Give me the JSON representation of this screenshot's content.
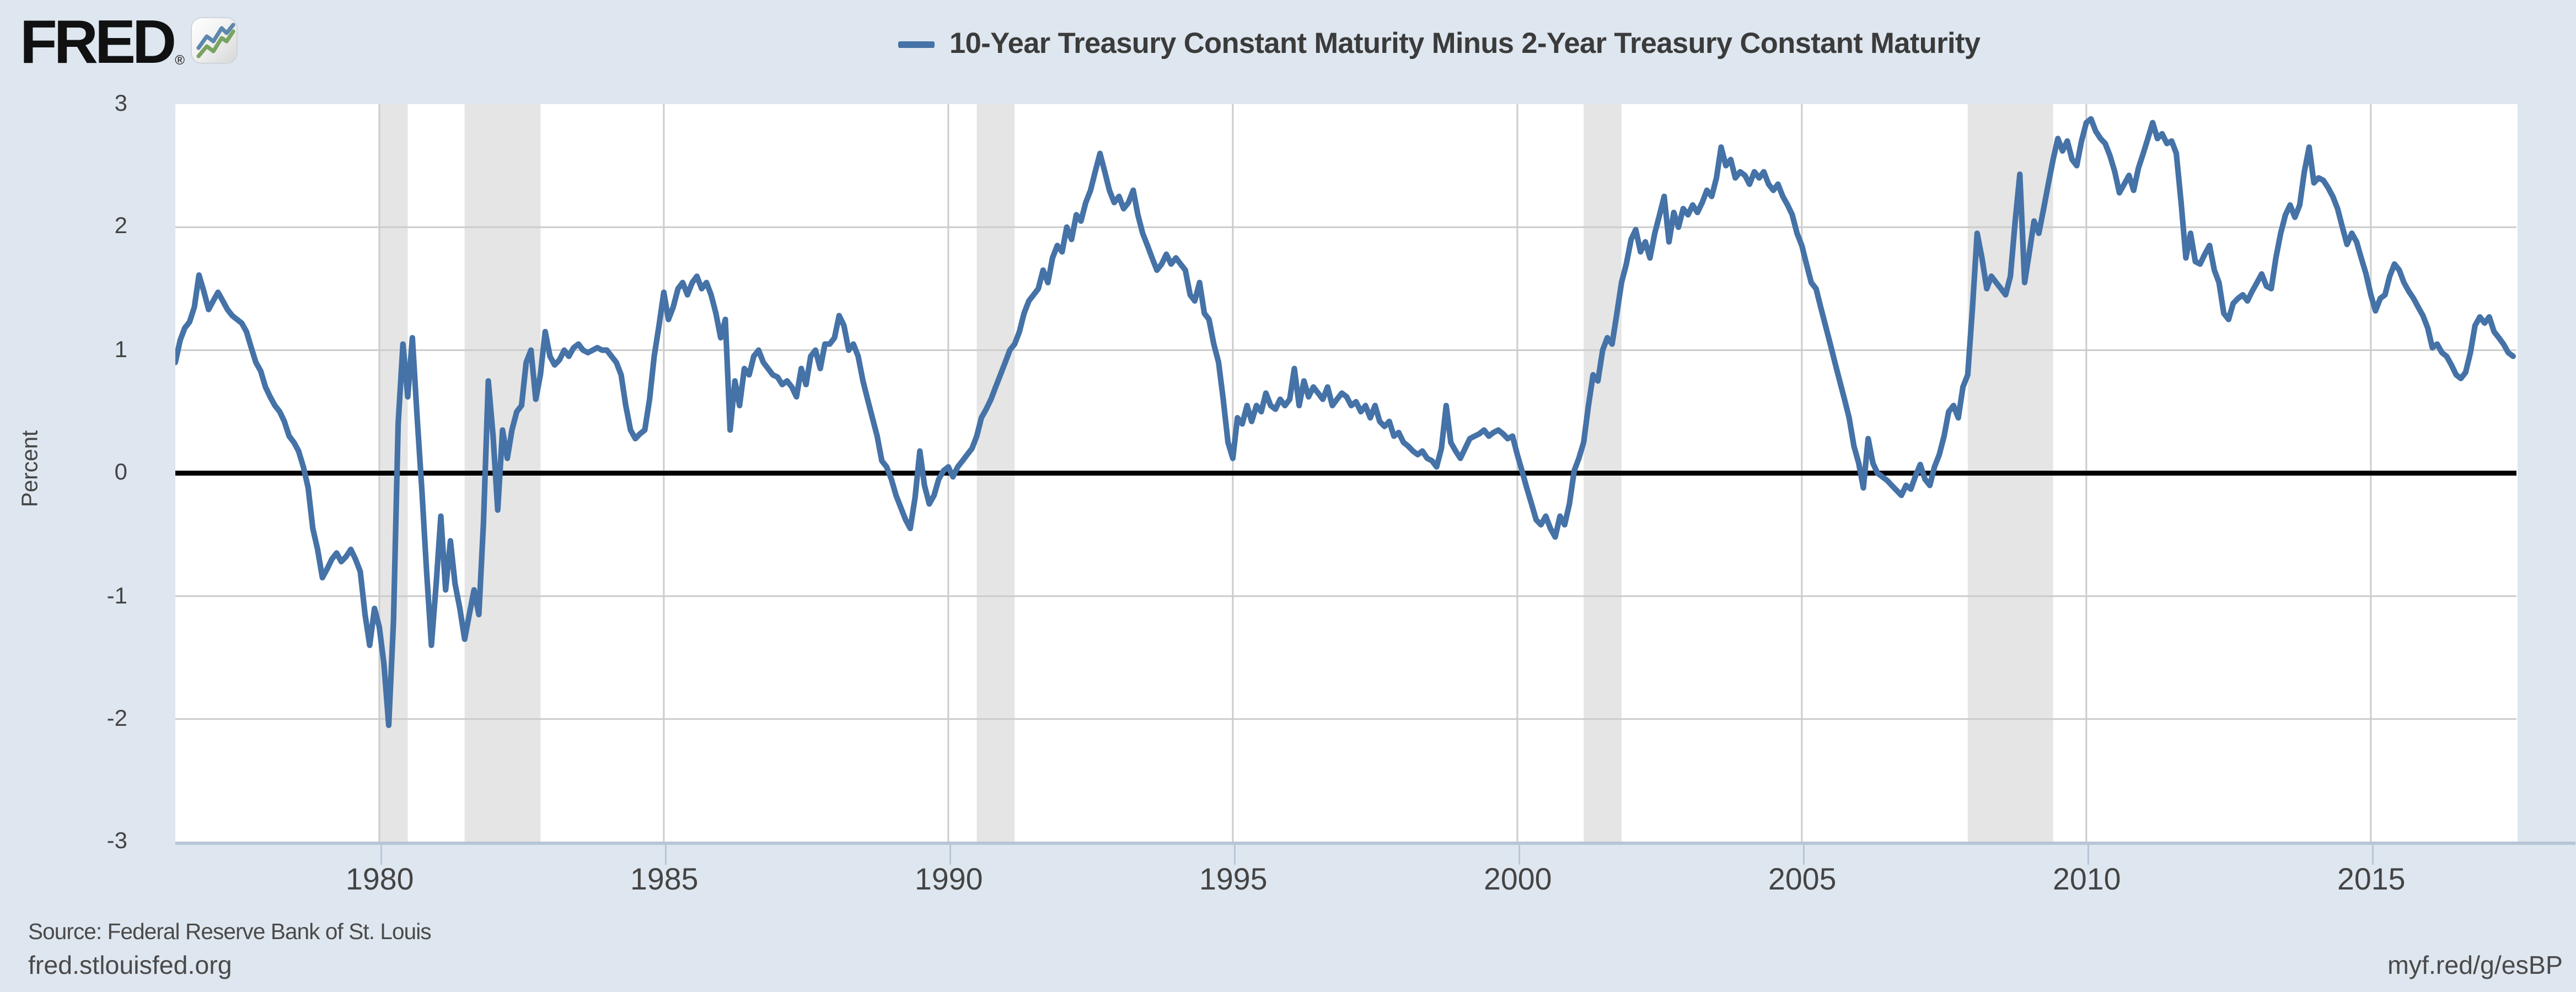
{
  "header": {
    "logo_text": "FRED",
    "logo_registered": "®",
    "legend": {
      "series_label": "10-Year Treasury Constant Maturity Minus 2-Year Treasury Constant Maturity"
    }
  },
  "chart_data": {
    "type": "line",
    "title": "",
    "xlabel": "",
    "ylabel": "Percent",
    "x_domain": [
      1976.417,
      2017.56
    ],
    "ylim": [
      -3,
      3
    ],
    "y_ticks": [
      3,
      2,
      1,
      0,
      -1,
      -2,
      -3
    ],
    "x_ticks": [
      1980,
      1985,
      1990,
      1995,
      2000,
      2005,
      2010,
      2015
    ],
    "grid": true,
    "legend_position": "top",
    "zero_line": true,
    "recession_bands": [
      [
        1980.0,
        1980.5
      ],
      [
        1981.5,
        1982.833
      ],
      [
        1990.5,
        1991.167
      ],
      [
        2001.167,
        2001.833
      ],
      [
        2007.917,
        2009.417
      ]
    ],
    "series": [
      {
        "name": "10-Year Treasury Constant Maturity Minus 2-Year Treasury Constant Maturity",
        "color": "#4572a7",
        "frequency": "monthly",
        "start": {
          "year": 1976,
          "month": 6
        },
        "values": [
          0.9,
          1.08,
          1.18,
          1.23,
          1.35,
          1.61,
          1.48,
          1.33,
          1.4,
          1.47,
          1.4,
          1.33,
          1.28,
          1.25,
          1.22,
          1.15,
          1.02,
          0.9,
          0.83,
          0.7,
          0.62,
          0.55,
          0.5,
          0.42,
          0.3,
          0.25,
          0.18,
          0.05,
          -0.12,
          -0.45,
          -0.62,
          -0.85,
          -0.78,
          -0.7,
          -0.65,
          -0.72,
          -0.68,
          -0.62,
          -0.7,
          -0.8,
          -1.15,
          -1.4,
          -1.1,
          -1.25,
          -1.55,
          -2.05,
          -1.2,
          0.4,
          1.05,
          0.62,
          1.1,
          0.45,
          -0.15,
          -0.8,
          -1.4,
          -0.9,
          -0.35,
          -0.95,
          -0.55,
          -0.9,
          -1.1,
          -1.35,
          -1.15,
          -0.95,
          -1.15,
          -0.4,
          0.75,
          0.3,
          -0.3,
          0.35,
          0.12,
          0.35,
          0.5,
          0.55,
          0.9,
          1.0,
          0.6,
          0.8,
          1.15,
          0.95,
          0.88,
          0.92,
          1.0,
          0.95,
          1.02,
          1.05,
          1.0,
          0.98,
          1.0,
          1.02,
          1.0,
          1.0,
          0.95,
          0.9,
          0.8,
          0.55,
          0.35,
          0.28,
          0.32,
          0.35,
          0.6,
          0.95,
          1.2,
          1.47,
          1.25,
          1.35,
          1.5,
          1.55,
          1.45,
          1.55,
          1.6,
          1.5,
          1.55,
          1.45,
          1.3,
          1.1,
          1.25,
          0.35,
          0.75,
          0.55,
          0.85,
          0.8,
          0.95,
          1.0,
          0.9,
          0.85,
          0.8,
          0.78,
          0.72,
          0.75,
          0.7,
          0.62,
          0.85,
          0.72,
          0.95,
          1.0,
          0.85,
          1.05,
          1.05,
          1.1,
          1.28,
          1.2,
          1.0,
          1.05,
          0.95,
          0.75,
          0.6,
          0.45,
          0.3,
          0.1,
          0.05,
          -0.05,
          -0.18,
          -0.28,
          -0.38,
          -0.45,
          -0.2,
          0.18,
          -0.1,
          -0.25,
          -0.18,
          -0.05,
          0.02,
          0.05,
          -0.03,
          0.05,
          0.1,
          0.15,
          0.2,
          0.3,
          0.45,
          0.52,
          0.6,
          0.7,
          0.8,
          0.9,
          1.0,
          1.05,
          1.15,
          1.3,
          1.4,
          1.45,
          1.5,
          1.65,
          1.55,
          1.75,
          1.85,
          1.8,
          2.0,
          1.9,
          2.1,
          2.05,
          2.2,
          2.3,
          2.45,
          2.6,
          2.45,
          2.3,
          2.2,
          2.25,
          2.15,
          2.2,
          2.3,
          2.1,
          1.95,
          1.85,
          1.75,
          1.65,
          1.7,
          1.78,
          1.7,
          1.75,
          1.7,
          1.65,
          1.45,
          1.4,
          1.55,
          1.3,
          1.25,
          1.05,
          0.9,
          0.6,
          0.25,
          0.12,
          0.45,
          0.4,
          0.55,
          0.42,
          0.55,
          0.5,
          0.65,
          0.55,
          0.52,
          0.6,
          0.55,
          0.6,
          0.85,
          0.55,
          0.75,
          0.62,
          0.7,
          0.65,
          0.6,
          0.7,
          0.55,
          0.6,
          0.65,
          0.62,
          0.55,
          0.58,
          0.5,
          0.55,
          0.45,
          0.55,
          0.42,
          0.38,
          0.42,
          0.3,
          0.33,
          0.25,
          0.22,
          0.18,
          0.15,
          0.18,
          0.12,
          0.1,
          0.05,
          0.2,
          0.55,
          0.25,
          0.18,
          0.12,
          0.2,
          0.28,
          0.3,
          0.32,
          0.35,
          0.3,
          0.33,
          0.35,
          0.32,
          0.28,
          0.3,
          0.15,
          0.02,
          -0.12,
          -0.25,
          -0.38,
          -0.42,
          -0.35,
          -0.45,
          -0.52,
          -0.35,
          -0.42,
          -0.25,
          0.02,
          0.12,
          0.25,
          0.55,
          0.8,
          0.75,
          1.0,
          1.1,
          1.05,
          1.3,
          1.55,
          1.7,
          1.9,
          1.98,
          1.8,
          1.88,
          1.75,
          1.95,
          2.1,
          2.25,
          1.88,
          2.12,
          2.0,
          2.15,
          2.1,
          2.18,
          2.12,
          2.2,
          2.3,
          2.25,
          2.4,
          2.65,
          2.5,
          2.55,
          2.4,
          2.45,
          2.42,
          2.35,
          2.45,
          2.4,
          2.45,
          2.35,
          2.3,
          2.35,
          2.25,
          2.18,
          2.1,
          1.95,
          1.85,
          1.7,
          1.55,
          1.5,
          1.35,
          1.2,
          1.05,
          0.9,
          0.75,
          0.6,
          0.45,
          0.22,
          0.08,
          -0.12,
          0.28,
          0.08,
          0.0,
          -0.03,
          -0.06,
          -0.1,
          -0.14,
          -0.18,
          -0.1,
          -0.13,
          -0.02,
          0.07,
          -0.05,
          -0.1,
          0.05,
          0.15,
          0.3,
          0.5,
          0.55,
          0.45,
          0.7,
          0.8,
          1.35,
          1.95,
          1.75,
          1.5,
          1.6,
          1.55,
          1.5,
          1.45,
          1.6,
          2.05,
          2.43,
          1.55,
          1.8,
          2.05,
          1.95,
          2.15,
          2.35,
          2.55,
          2.72,
          2.62,
          2.7,
          2.55,
          2.5,
          2.7,
          2.85,
          2.88,
          2.78,
          2.72,
          2.68,
          2.58,
          2.45,
          2.28,
          2.35,
          2.42,
          2.3,
          2.48,
          2.6,
          2.72,
          2.85,
          2.72,
          2.76,
          2.68,
          2.7,
          2.6,
          2.2,
          1.75,
          1.95,
          1.72,
          1.7,
          1.78,
          1.85,
          1.65,
          1.55,
          1.3,
          1.25,
          1.38,
          1.42,
          1.45,
          1.4,
          1.48,
          1.55,
          1.62,
          1.52,
          1.5,
          1.75,
          1.95,
          2.1,
          2.18,
          2.08,
          2.18,
          2.45,
          2.65,
          2.36,
          2.4,
          2.38,
          2.32,
          2.25,
          2.15,
          2.0,
          1.86,
          1.95,
          1.88,
          1.75,
          1.62,
          1.45,
          1.32,
          1.42,
          1.45,
          1.6,
          1.7,
          1.65,
          1.55,
          1.48,
          1.42,
          1.35,
          1.28,
          1.18,
          1.02,
          1.05,
          0.98,
          0.95,
          0.88,
          0.8,
          0.77,
          0.82,
          0.98,
          1.2,
          1.27,
          1.22,
          1.27,
          1.15,
          1.1,
          1.05,
          0.98,
          0.95
        ]
      }
    ]
  },
  "footer": {
    "source": "Source: Federal Reserve Bank of St. Louis",
    "site_link": "fred.stlouisfed.org",
    "short_link": "myf.red/g/esBP"
  },
  "colors": {
    "background": "#dee6ef",
    "plot_background": "#ffffff",
    "grid": "#cccccc",
    "recession_band": "#e5e5e5",
    "axis": "#b7c6d7",
    "line": "#4572a7",
    "zero_line": "#000000",
    "tick_text": "#444444",
    "footer_text": "#4a4a4a"
  }
}
